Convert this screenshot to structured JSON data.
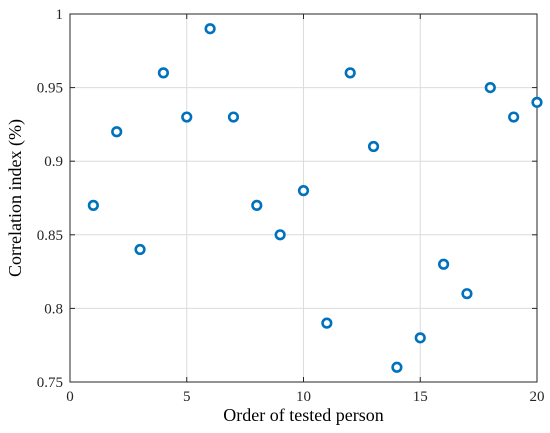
{
  "chart_data": {
    "type": "scatter",
    "title": "",
    "xlabel": "Order of tested person",
    "ylabel": "Correlation index (%)",
    "xlim": [
      0,
      20
    ],
    "ylim": [
      0.75,
      1
    ],
    "xticks": [
      0,
      5,
      10,
      15,
      20
    ],
    "xtick_labels": [
      "0",
      "5",
      "10",
      "15",
      "20"
    ],
    "yticks": [
      0.75,
      0.8,
      0.85,
      0.9,
      0.95,
      1
    ],
    "ytick_labels": [
      "0.75",
      "0.8",
      "0.85",
      "0.9",
      "0.95",
      "1"
    ],
    "grid": true,
    "marker": "circle-open",
    "color": "#0072BD",
    "series": [
      {
        "x": [
          1,
          2,
          3,
          4,
          5,
          6,
          7,
          8,
          9,
          10,
          11,
          12,
          13,
          14,
          15,
          16,
          17,
          18,
          19,
          20
        ],
        "y": [
          0.87,
          0.92,
          0.84,
          0.96,
          0.93,
          0.99,
          0.93,
          0.87,
          0.85,
          0.88,
          0.79,
          0.96,
          0.91,
          0.76,
          0.78,
          0.83,
          0.81,
          0.95,
          0.93,
          0.94
        ]
      }
    ]
  }
}
